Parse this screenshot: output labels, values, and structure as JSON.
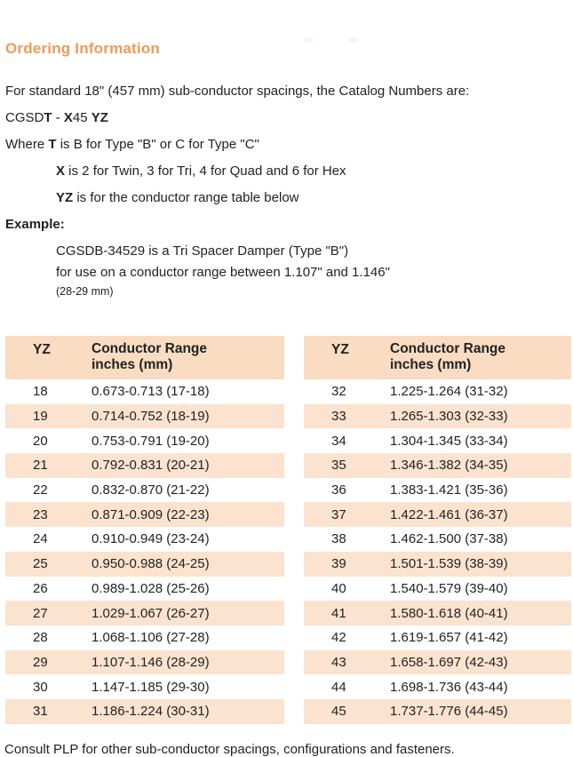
{
  "doc": {
    "section_title": "Ordering Information",
    "intro_line": "For standard 18\" (457 mm) sub-conductor spacings, the Catalog Numbers are:",
    "catalog_format": {
      "prefix": "CGSD",
      "t_bold": "T",
      "separator": " - ",
      "x_bold": "X",
      "number": "45 ",
      "yz_bold": "YZ"
    },
    "where_line": {
      "pre": "Where ",
      "bold": "T",
      "rest": " is B for Type \"B\" or C for Type \"C\""
    },
    "x_line": {
      "bold": "X",
      "rest": " is 2 for Twin, 3 for Tri, 4 for Quad and 6 for Hex"
    },
    "yz_line": {
      "bold": "YZ",
      "rest": " is for the conductor range table below"
    },
    "example_label": "Example:",
    "example_line1": "CGSDB-34529 is a Tri Spacer Damper (Type \"B\")",
    "example_line2": "for use on a conductor range between 1.107\" and 1.146\"",
    "example_line3": "(28-29 mm)",
    "footer": "Consult PLP for other sub-conductor spacings, configurations and fasteners."
  },
  "table": {
    "header": {
      "yz": "YZ",
      "range_line1": "Conductor Range",
      "range_line2": "inches (mm)"
    },
    "left_rows": [
      {
        "yz": "18",
        "range": "0.673-0.713 (17-18)"
      },
      {
        "yz": "19",
        "range": "0.714-0.752 (18-19)"
      },
      {
        "yz": "20",
        "range": "0.753-0.791 (19-20)"
      },
      {
        "yz": "21",
        "range": "0.792-0.831 (20-21)"
      },
      {
        "yz": "22",
        "range": "0.832-0.870 (21-22)"
      },
      {
        "yz": "23",
        "range": "0.871-0.909 (22-23)"
      },
      {
        "yz": "24",
        "range": "0.910-0.949 (23-24)"
      },
      {
        "yz": "25",
        "range": "0.950-0.988 (24-25)"
      },
      {
        "yz": "26",
        "range": "0.989-1.028 (25-26)"
      },
      {
        "yz": "27",
        "range": "1.029-1.067 (26-27)"
      },
      {
        "yz": "28",
        "range": "1.068-1.106 (27-28)"
      },
      {
        "yz": "29",
        "range": "1.107-1.146 (28-29)"
      },
      {
        "yz": "30",
        "range": "1.147-1.185 (29-30)"
      },
      {
        "yz": "31",
        "range": "1.186-1.224 (30-31)"
      }
    ],
    "right_rows": [
      {
        "yz": "32",
        "range": "1.225-1.264 (31-32)"
      },
      {
        "yz": "33",
        "range": "1.265-1.303 (32-33)"
      },
      {
        "yz": "34",
        "range": "1.304-1.345 (33-34)"
      },
      {
        "yz": "35",
        "range": "1.346-1.382 (34-35)"
      },
      {
        "yz": "36",
        "range": "1.383-1.421 (35-36)"
      },
      {
        "yz": "37",
        "range": "1.422-1.461 (36-37)"
      },
      {
        "yz": "38",
        "range": "1.462-1.500 (37-38)"
      },
      {
        "yz": "39",
        "range": "1.501-1.539 (38-39)"
      },
      {
        "yz": "40",
        "range": "1.540-1.579 (39-40)"
      },
      {
        "yz": "41",
        "range": "1.580-1.618 (40-41)"
      },
      {
        "yz": "42",
        "range": "1.619-1.657 (41-42)"
      },
      {
        "yz": "43",
        "range": "1.658-1.697 (42-43)"
      },
      {
        "yz": "44",
        "range": "1.698-1.736 (43-44)"
      },
      {
        "yz": "45",
        "range": "1.737-1.776 (44-45)"
      }
    ]
  },
  "colors": {
    "title_orange": "#ef9a57",
    "table_header_peach": "#f9dcc2",
    "row_stripe_peach": "#fbe3d0",
    "text": "#222222"
  }
}
